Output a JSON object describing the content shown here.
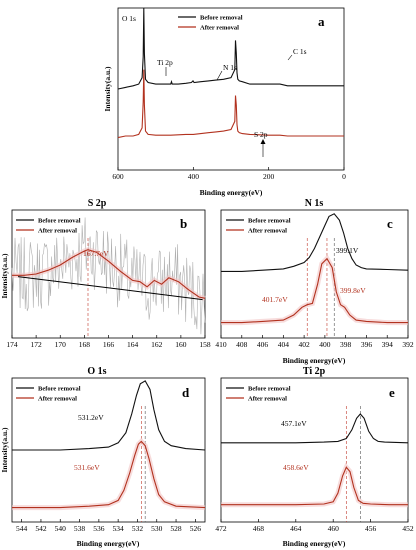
{
  "colors": {
    "before": "#111111",
    "after": "#b2321f",
    "noise": "#b0b0b0",
    "guide": "#c0392b"
  },
  "chart_data": [
    {
      "id": "a",
      "type": "line",
      "panel_label": "a",
      "title": "",
      "xlabel": "Binding energy(eV)",
      "ylabel": "Intensity(a.u.)",
      "xlim": [
        600,
        0
      ],
      "xticks": [
        600,
        400,
        200,
        0
      ],
      "legend": [
        "Before removal",
        "After removal"
      ],
      "legend_position": "top-right",
      "annotations": [
        "O 1s",
        "C 1s",
        "Ti 2p",
        "N 1s",
        "S 2p"
      ],
      "series": [
        {
          "name": "Before removal",
          "x": [
            600,
            580,
            560,
            545,
            536,
            533,
            531.5,
            530,
            527,
            520,
            500,
            480,
            460,
            458,
            456,
            440,
            420,
            405,
            401,
            398,
            380,
            360,
            340,
            320,
            300,
            290,
            288,
            286,
            284,
            282,
            278,
            270,
            250,
            200,
            170,
            150,
            100,
            50,
            0
          ],
          "y": [
            0.5,
            0.51,
            0.52,
            0.53,
            0.57,
            0.7,
            1.0,
            0.72,
            0.56,
            0.54,
            0.53,
            0.53,
            0.53,
            0.545,
            0.53,
            0.53,
            0.535,
            0.54,
            0.55,
            0.54,
            0.545,
            0.55,
            0.555,
            0.56,
            0.57,
            0.62,
            0.8,
            0.72,
            0.6,
            0.56,
            0.55,
            0.545,
            0.53,
            0.53,
            0.53,
            0.52,
            0.52,
            0.52,
            0.52
          ]
        },
        {
          "name": "After removal",
          "x": [
            600,
            580,
            560,
            545,
            536,
            533,
            531.5,
            530,
            527,
            520,
            500,
            480,
            460,
            420,
            400,
            380,
            360,
            340,
            320,
            300,
            290,
            288,
            286,
            284,
            282,
            278,
            270,
            250,
            200,
            170,
            150,
            100,
            50,
            0
          ],
          "y": [
            0.2,
            0.21,
            0.21,
            0.22,
            0.26,
            0.42,
            0.62,
            0.4,
            0.24,
            0.22,
            0.215,
            0.215,
            0.215,
            0.22,
            0.22,
            0.225,
            0.23,
            0.235,
            0.24,
            0.25,
            0.3,
            0.46,
            0.4,
            0.28,
            0.24,
            0.23,
            0.225,
            0.22,
            0.215,
            0.215,
            0.21,
            0.21,
            0.21,
            0.21
          ]
        }
      ]
    },
    {
      "id": "b",
      "type": "line",
      "panel_label": "b",
      "title": "S 2p",
      "xlabel": "",
      "ylabel": "Intensity(a.u.)",
      "xlim": [
        174,
        158
      ],
      "xticks": [
        174,
        172,
        170,
        168,
        166,
        164,
        162,
        160,
        158
      ],
      "legend": [
        "Before removal",
        "After removal"
      ],
      "legend_position": "top-left",
      "peak_label": "167.7eV",
      "series": [
        {
          "name": "Before removal",
          "x": [],
          "y": []
        },
        {
          "name": "After removal",
          "x": [
            174,
            173,
            172,
            171,
            170,
            169,
            168,
            167.7,
            167,
            166,
            165,
            164,
            163.4,
            162.8,
            162.2,
            161.6,
            161,
            160.2,
            159.4,
            158.5,
            158
          ],
          "y": [
            0.49,
            0.49,
            0.5,
            0.53,
            0.57,
            0.63,
            0.68,
            0.69,
            0.67,
            0.6,
            0.52,
            0.45,
            0.44,
            0.4,
            0.45,
            0.42,
            0.47,
            0.44,
            0.38,
            0.32,
            0.31
          ]
        },
        {
          "name": "Baseline",
          "x": [
            173.5,
            158.2
          ],
          "y": [
            0.48,
            0.3
          ]
        }
      ]
    },
    {
      "id": "c",
      "type": "line",
      "panel_label": "c",
      "title": "N 1s",
      "xlabel": "Binding energy(eV)",
      "ylabel": "",
      "xlim": [
        410,
        392
      ],
      "xticks": [
        410,
        408,
        406,
        404,
        402,
        400,
        398,
        396,
        394,
        392
      ],
      "legend": [
        "Before removal",
        "After removal"
      ],
      "legend_position": "top-left",
      "peak_labels": [
        "399.1V",
        "401.7eV",
        "399.8eV"
      ],
      "series": [
        {
          "name": "Before removal",
          "x": [
            410,
            408,
            406,
            404,
            403,
            402,
            401.5,
            401,
            400.5,
            400,
            399.6,
            399.1,
            398.6,
            398.2,
            397.8,
            397.4,
            397,
            396.5,
            396,
            394,
            392
          ],
          "y": [
            0.52,
            0.52,
            0.53,
            0.54,
            0.56,
            0.59,
            0.63,
            0.7,
            0.79,
            0.88,
            0.95,
            0.97,
            0.92,
            0.82,
            0.7,
            0.62,
            0.57,
            0.55,
            0.54,
            0.535,
            0.53
          ]
        },
        {
          "name": "After removal",
          "x": [
            410,
            408,
            406,
            404,
            403,
            402.2,
            401.7,
            401.2,
            400.7,
            400.3,
            399.8,
            399.3,
            398.9,
            398.5,
            398.1,
            397.6,
            397,
            396,
            394,
            392
          ],
          "y": [
            0.12,
            0.12,
            0.13,
            0.14,
            0.18,
            0.24,
            0.26,
            0.27,
            0.42,
            0.58,
            0.62,
            0.55,
            0.36,
            0.26,
            0.24,
            0.18,
            0.14,
            0.13,
            0.12,
            0.12
          ]
        }
      ]
    },
    {
      "id": "d",
      "type": "line",
      "panel_label": "d",
      "title": "O 1s",
      "xlabel": "Binding energy(eV)",
      "ylabel": "Intensity(a.u.)",
      "xlim": [
        545,
        525
      ],
      "xticks": [
        544,
        542,
        540,
        538,
        536,
        534,
        532,
        530,
        528,
        526
      ],
      "legend": [
        "Before removal",
        "After removal"
      ],
      "legend_position": "top-left",
      "peak_labels": [
        "531.2eV",
        "531.6eV"
      ],
      "series": [
        {
          "name": "Before removal",
          "x": [
            545,
            540,
            537,
            535,
            534,
            533.2,
            532.6,
            532.1,
            531.7,
            531.2,
            530.7,
            530.3,
            529.8,
            529.2,
            528.5,
            527,
            525
          ],
          "y": [
            0.5,
            0.5,
            0.51,
            0.52,
            0.55,
            0.62,
            0.75,
            0.88,
            0.96,
            0.98,
            0.92,
            0.78,
            0.64,
            0.56,
            0.53,
            0.51,
            0.5
          ]
        },
        {
          "name": "After removal",
          "x": [
            545,
            540,
            537,
            535,
            534,
            533.4,
            532.8,
            532.3,
            531.9,
            531.6,
            531.2,
            530.8,
            530.3,
            529.8,
            529.2,
            528,
            525
          ],
          "y": [
            0.1,
            0.1,
            0.11,
            0.12,
            0.15,
            0.22,
            0.34,
            0.46,
            0.54,
            0.56,
            0.53,
            0.44,
            0.3,
            0.19,
            0.14,
            0.11,
            0.1
          ]
        }
      ]
    },
    {
      "id": "e",
      "type": "line",
      "panel_label": "e",
      "title": "Ti 2p",
      "xlabel": "Binding energy(eV)",
      "ylabel": "",
      "xlim": [
        472,
        452
      ],
      "xticks": [
        472,
        468,
        464,
        460,
        456,
        452
      ],
      "legend": [
        "Before removal",
        "After removal"
      ],
      "legend_position": "top-left",
      "peak_labels": [
        "457.1eV",
        "458.6eV"
      ],
      "series": [
        {
          "name": "Before removal",
          "x": [
            472,
            468,
            464,
            461,
            459.5,
            458.6,
            458,
            457.5,
            457.1,
            456.7,
            456.2,
            455.7,
            455.2,
            454.5,
            452
          ],
          "y": [
            0.55,
            0.55,
            0.55,
            0.555,
            0.56,
            0.58,
            0.64,
            0.72,
            0.75,
            0.72,
            0.63,
            0.58,
            0.56,
            0.555,
            0.55
          ]
        },
        {
          "name": "After removal",
          "x": [
            472,
            468,
            464,
            461,
            460,
            459.5,
            459,
            458.6,
            458.2,
            457.8,
            457.3,
            456.8,
            456,
            454,
            452
          ],
          "y": [
            0.12,
            0.12,
            0.12,
            0.125,
            0.14,
            0.2,
            0.32,
            0.38,
            0.35,
            0.24,
            0.15,
            0.13,
            0.125,
            0.12,
            0.12
          ]
        }
      ]
    }
  ]
}
